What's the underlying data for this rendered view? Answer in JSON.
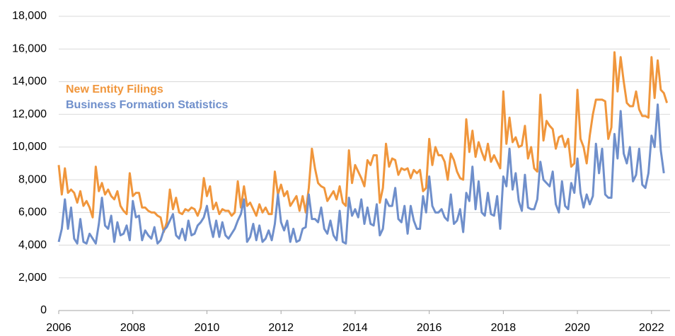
{
  "chart_data": {
    "type": "line",
    "x": [
      2006,
      2006.0833,
      2006.1667,
      2006.25,
      2006.3333,
      2006.4167,
      2006.5,
      2006.5833,
      2006.6667,
      2006.75,
      2006.8333,
      2006.9167,
      2007,
      2007.0833,
      2007.1667,
      2007.25,
      2007.3333,
      2007.4167,
      2007.5,
      2007.5833,
      2007.6667,
      2007.75,
      2007.8333,
      2007.9167,
      2008,
      2008.0833,
      2008.1667,
      2008.25,
      2008.3333,
      2008.4167,
      2008.5,
      2008.5833,
      2008.6667,
      2008.75,
      2008.8333,
      2008.9167,
      2009,
      2009.0833,
      2009.1667,
      2009.25,
      2009.3333,
      2009.4167,
      2009.5,
      2009.5833,
      2009.6667,
      2009.75,
      2009.8333,
      2009.9167,
      2010,
      2010.0833,
      2010.1667,
      2010.25,
      2010.3333,
      2010.4167,
      2010.5,
      2010.5833,
      2010.6667,
      2010.75,
      2010.8333,
      2010.9167,
      2011,
      2011.0833,
      2011.1667,
      2011.25,
      2011.3333,
      2011.4167,
      2011.5,
      2011.5833,
      2011.6667,
      2011.75,
      2011.8333,
      2011.9167,
      2012,
      2012.0833,
      2012.1667,
      2012.25,
      2012.3333,
      2012.4167,
      2012.5,
      2012.5833,
      2012.6667,
      2012.75,
      2012.8333,
      2012.9167,
      2013,
      2013.0833,
      2013.1667,
      2013.25,
      2013.3333,
      2013.4167,
      2013.5,
      2013.5833,
      2013.6667,
      2013.75,
      2013.8333,
      2013.9167,
      2014,
      2014.0833,
      2014.1667,
      2014.25,
      2014.3333,
      2014.4167,
      2014.5,
      2014.5833,
      2014.6667,
      2014.75,
      2014.8333,
      2014.9167,
      2015,
      2015.0833,
      2015.1667,
      2015.25,
      2015.3333,
      2015.4167,
      2015.5,
      2015.5833,
      2015.6667,
      2015.75,
      2015.8333,
      2015.9167,
      2016,
      2016.0833,
      2016.1667,
      2016.25,
      2016.3333,
      2016.4167,
      2016.5,
      2016.5833,
      2016.6667,
      2016.75,
      2016.8333,
      2016.9167,
      2017,
      2017.0833,
      2017.1667,
      2017.25,
      2017.3333,
      2017.4167,
      2017.5,
      2017.5833,
      2017.6667,
      2017.75,
      2017.8333,
      2017.9167,
      2018,
      2018.0833,
      2018.1667,
      2018.25,
      2018.3333,
      2018.4167,
      2018.5,
      2018.5833,
      2018.6667,
      2018.75,
      2018.8333,
      2018.9167,
      2019,
      2019.0833,
      2019.1667,
      2019.25,
      2019.3333,
      2019.4167,
      2019.5,
      2019.5833,
      2019.6667,
      2019.75,
      2019.8333,
      2019.9167,
      2020,
      2020.0833,
      2020.1667,
      2020.25,
      2020.3333,
      2020.4167,
      2020.5,
      2020.5833,
      2020.6667,
      2020.75,
      2020.8333,
      2020.9167,
      2021,
      2021.0833,
      2021.1667,
      2021.25,
      2021.3333,
      2021.4167,
      2021.5,
      2021.5833,
      2021.6667,
      2021.75,
      2021.8333,
      2021.9167,
      2022,
      2022.0833,
      2022.1667,
      2022.25,
      2022.3333,
      2022.4167
    ],
    "series": [
      {
        "name": "New Entity Filings",
        "color": "#f0963c",
        "values": [
          8900,
          7100,
          8700,
          7200,
          7400,
          7200,
          6600,
          7300,
          6400,
          6700,
          6300,
          5700,
          8800,
          7300,
          7800,
          7100,
          7400,
          7000,
          6800,
          7300,
          6400,
          6100,
          5900,
          8400,
          7000,
          7200,
          7200,
          6300,
          6300,
          6100,
          6000,
          6000,
          5800,
          5700,
          4800,
          5400,
          7400,
          6200,
          6900,
          6000,
          5900,
          6200,
          6100,
          6300,
          6200,
          5800,
          6300,
          8100,
          7000,
          7600,
          6200,
          6600,
          5900,
          6200,
          6100,
          6100,
          5800,
          6000,
          7900,
          6300,
          7600,
          6400,
          6600,
          6200,
          5800,
          6500,
          6000,
          6300,
          5900,
          5900,
          8500,
          7100,
          7700,
          7000,
          7300,
          6400,
          6700,
          7000,
          6100,
          7000,
          6000,
          7500,
          9900,
          8700,
          7800,
          7600,
          7500,
          6700,
          7000,
          7300,
          6800,
          7600,
          6600,
          6400,
          9800,
          7800,
          8900,
          8500,
          8100,
          7600,
          9200,
          8900,
          9500,
          9500,
          6600,
          7500,
          10200,
          8800,
          9300,
          9200,
          8300,
          8700,
          8600,
          8700,
          8100,
          8600,
          8400,
          8600,
          7300,
          7500,
          10500,
          8900,
          10000,
          9500,
          9500,
          9100,
          8000,
          9600,
          9200,
          8500,
          8100,
          8000,
          11700,
          9700,
          11000,
          9400,
          10300,
          9700,
          9200,
          10200,
          9100,
          9500,
          9100,
          8700,
          13400,
          10200,
          11800,
          10300,
          10600,
          10000,
          10100,
          11300,
          9300,
          10000,
          8700,
          8500,
          13200,
          10400,
          11600,
          11300,
          11100,
          9900,
          10600,
          10700,
          10000,
          10500,
          8800,
          9000,
          13500,
          10500,
          10000,
          9000,
          10700,
          12000,
          12900,
          12900,
          12900,
          12800,
          10500,
          11200,
          15800,
          13400,
          15500,
          14000,
          12700,
          12500,
          12500,
          13400,
          12300,
          11900,
          11900,
          11800,
          15500,
          13000,
          15300,
          13500,
          13300,
          12700
        ]
      },
      {
        "name": "Business Formation Statistics",
        "color": "#6f8fcb",
        "values": [
          4200,
          5000,
          6800,
          5000,
          6300,
          4400,
          4100,
          5600,
          4200,
          4100,
          4700,
          4400,
          4100,
          5300,
          6900,
          5200,
          5000,
          5800,
          4200,
          5400,
          4600,
          4700,
          5200,
          4300,
          6700,
          5700,
          5800,
          4300,
          4900,
          4600,
          4400,
          5100,
          4100,
          4300,
          4900,
          5100,
          5500,
          5900,
          4600,
          4400,
          5000,
          4300,
          5500,
          4600,
          4700,
          5200,
          5400,
          5700,
          6400,
          5300,
          4500,
          5500,
          4500,
          5400,
          4600,
          4400,
          4700,
          5000,
          5500,
          5900,
          6800,
          4200,
          4500,
          5300,
          4300,
          5200,
          4200,
          4400,
          4900,
          4300,
          5300,
          7100,
          5400,
          4900,
          5500,
          4200,
          5000,
          4200,
          4300,
          5000,
          5100,
          7100,
          5600,
          5600,
          5400,
          6300,
          5000,
          4700,
          5500,
          4600,
          4300,
          6100,
          4200,
          4100,
          6900,
          5800,
          6200,
          5700,
          6800,
          5300,
          6300,
          5300,
          5200,
          6500,
          4600,
          5000,
          6800,
          6400,
          6400,
          7500,
          5600,
          5400,
          6400,
          4700,
          6400,
          5500,
          5000,
          5000,
          7000,
          6000,
          8200,
          6400,
          6000,
          6000,
          6200,
          5700,
          5500,
          7100,
          5300,
          5500,
          6200,
          4800,
          7200,
          6700,
          8800,
          6200,
          7900,
          6000,
          5800,
          7200,
          5900,
          5800,
          7000,
          5000,
          8200,
          7600,
          9900,
          7400,
          8400,
          6700,
          6100,
          8300,
          6300,
          6200,
          6200,
          6800,
          9100,
          8000,
          7800,
          7600,
          8500,
          6500,
          6000,
          7900,
          6400,
          6200,
          7800,
          7200,
          9300,
          7200,
          6300,
          7100,
          6500,
          7000,
          10200,
          8400,
          9900,
          7100,
          6900,
          6900,
          10800,
          9300,
          12200,
          9600,
          9000,
          10000,
          7900,
          8300,
          9900,
          7700,
          7500,
          8400,
          10700,
          10000,
          12600,
          9800,
          8400,
          null
        ]
      }
    ],
    "xlim": [
      2006,
      2022.5
    ],
    "xticks": [
      2006,
      2008,
      2010,
      2012,
      2014,
      2016,
      2018,
      2020,
      2022
    ],
    "ylim": [
      0,
      18000
    ],
    "yticks": [
      0,
      {
        "value": 2000,
        "label": "2,000"
      },
      {
        "value": 4000,
        "label": "4,000"
      },
      {
        "value": 6000,
        "label": "6,000"
      },
      {
        "value": 8000,
        "label": "8,000"
      },
      {
        "value": 10000,
        "label": "10,000"
      },
      {
        "value": 12000,
        "label": "12,000"
      },
      {
        "value": 14000,
        "label": "14,000"
      },
      {
        "value": 16000,
        "label": "16,000"
      },
      {
        "value": 18000,
        "label": "18,000"
      }
    ],
    "grid": true
  }
}
